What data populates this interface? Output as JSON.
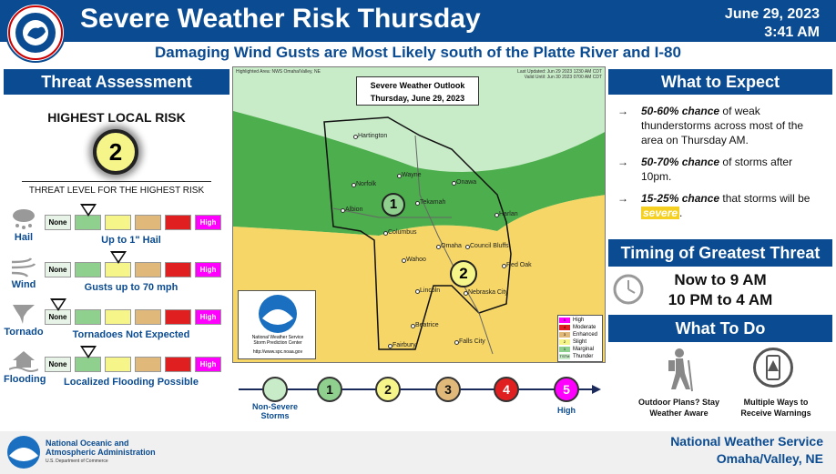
{
  "header": {
    "title": "Severe Weather Risk Thursday",
    "date": "June 29, 2023",
    "time": "3:41 AM",
    "subtitle": "Damaging Wind Gusts are Most Likely south of the Platte River and I-80",
    "logo_text": "NATIONAL WEATHER SERVICE"
  },
  "threat": {
    "heading": "Threat Assessment",
    "highest_label": "HIGHEST LOCAL RISK",
    "highest_value": "2",
    "level_caption": "THREAT LEVEL FOR THE HIGHEST RISK",
    "scale_none": "None",
    "scale_high": "High",
    "colors": [
      "#e7f3e7",
      "#8fd08f",
      "#f5f58a",
      "#e0b87a",
      "#e02020",
      "#ff00ff"
    ],
    "hazards": [
      {
        "name": "Hail",
        "description": "Up to 1\" Hail",
        "marker_level": 1
      },
      {
        "name": "Wind",
        "description": "Gusts up to 70 mph",
        "marker_level": 2
      },
      {
        "name": "Tornado",
        "description": "Tornadoes Not Expected",
        "marker_level": 0
      },
      {
        "name": "Flooding",
        "description": "Localized Flooding Possible",
        "marker_level": 1
      }
    ]
  },
  "map": {
    "box_title": "Severe Weather Outlook",
    "box_date": "Thursday, June 29, 2023",
    "highlight": "Highlighted Area: NWS Omaha/Valley, NE",
    "updated": "Last Updated: Jun 29 2023 1230 AM CDT",
    "valid": "Valid Until: Jun 30 2023 0700 AM CDT",
    "noaa_caption": "National Weather Service\nStorm Prediction Center",
    "noaa_url": "http://www.spc.noaa.gov",
    "towns": [
      "Hartington",
      "Wayne",
      "Norfolk",
      "Onawa",
      "Tekamah",
      "Albion",
      "Columbus",
      "Harlan",
      "Omaha",
      "Council Bluffs",
      "Wahoo",
      "Red Oak",
      "Lincoln",
      "Nebraska City",
      "Beatrice",
      "Fairbury",
      "Falls City"
    ],
    "risk_labels": [
      "1",
      "2"
    ],
    "legend": [
      {
        "num": "5",
        "label": "High"
      },
      {
        "num": "4",
        "label": "Moderate"
      },
      {
        "num": "3",
        "label": "Enhanced"
      },
      {
        "num": "2",
        "label": "Slight"
      },
      {
        "num": "1",
        "label": "Marginal"
      },
      {
        "num": "TSTM",
        "label": "Thunder"
      }
    ]
  },
  "bottom_scale": {
    "items": [
      "",
      "1",
      "2",
      "3",
      "4",
      "5"
    ],
    "left_label": "Non-Severe Storms",
    "right_label": "High"
  },
  "expect": {
    "heading": "What to Expect",
    "items": [
      {
        "bold": "50-60% chance",
        "rest": " of weak thunderstorms across most of the area on Thursday AM."
      },
      {
        "bold": "50-70% chance",
        "rest": " of storms after 10pm."
      },
      {
        "bold": "15-25% chance",
        "rest": " that storms will be ",
        "hl": "severe",
        "end": "."
      }
    ]
  },
  "timing": {
    "heading": "Timing of Greatest Threat",
    "line1": "Now to 9 AM",
    "line2": "10 PM to 4 AM"
  },
  "todo": {
    "heading": "What To Do",
    "item1": "Outdoor Plans? Stay Weather Aware",
    "item2": "Multiple Ways to Receive Warnings"
  },
  "footer": {
    "agency_line1": "National Oceanic and",
    "agency_line2": "Atmospheric Administration",
    "agency_line3": "U.S. Department of Commerce",
    "office_line1": "National Weather Service",
    "office_line2": "Omaha/Valley, NE"
  }
}
